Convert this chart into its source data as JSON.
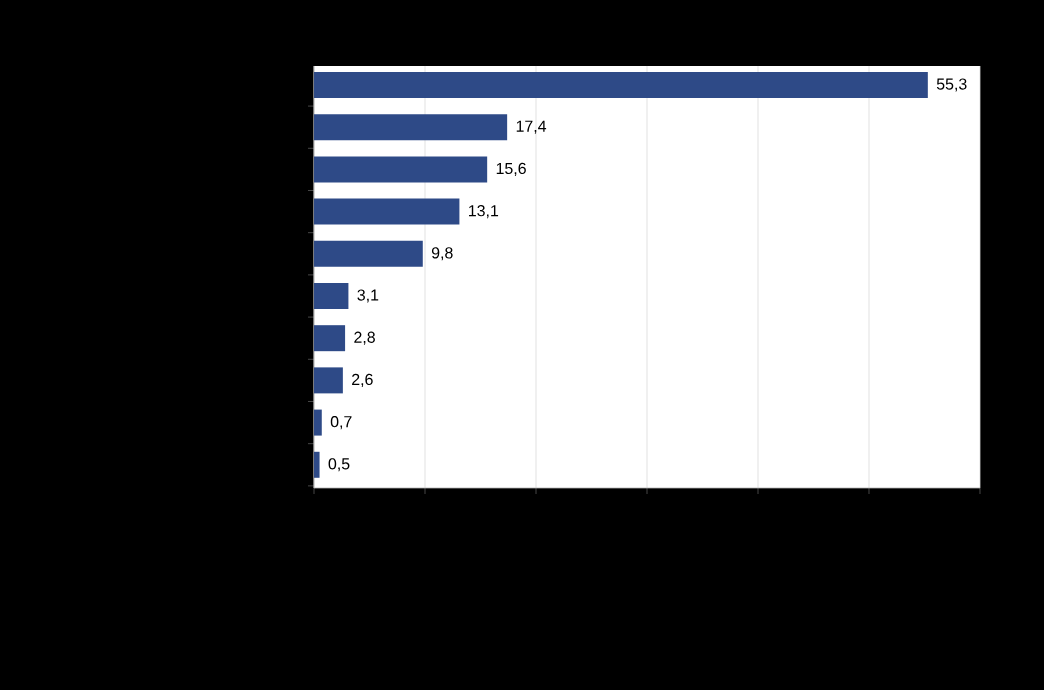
{
  "chart_data": {
    "type": "bar",
    "orientation": "horizontal",
    "categories": [
      null,
      null,
      null,
      null,
      null,
      null,
      null,
      null,
      null,
      null
    ],
    "values": [
      55.3,
      17.4,
      15.6,
      13.1,
      9.8,
      3.1,
      2.8,
      2.6,
      0.7,
      0.5
    ],
    "value_labels": [
      "55,3",
      "17,4",
      "15,6",
      "13,1",
      "9,8",
      "3,1",
      "2,8",
      "2,6",
      "0,7",
      "0,5"
    ],
    "color": "#2e4a87",
    "xlim": [
      0,
      60
    ],
    "xticks": [
      0,
      10,
      20,
      30,
      40,
      50,
      60
    ],
    "grid": "x",
    "tick_labels": false
  }
}
